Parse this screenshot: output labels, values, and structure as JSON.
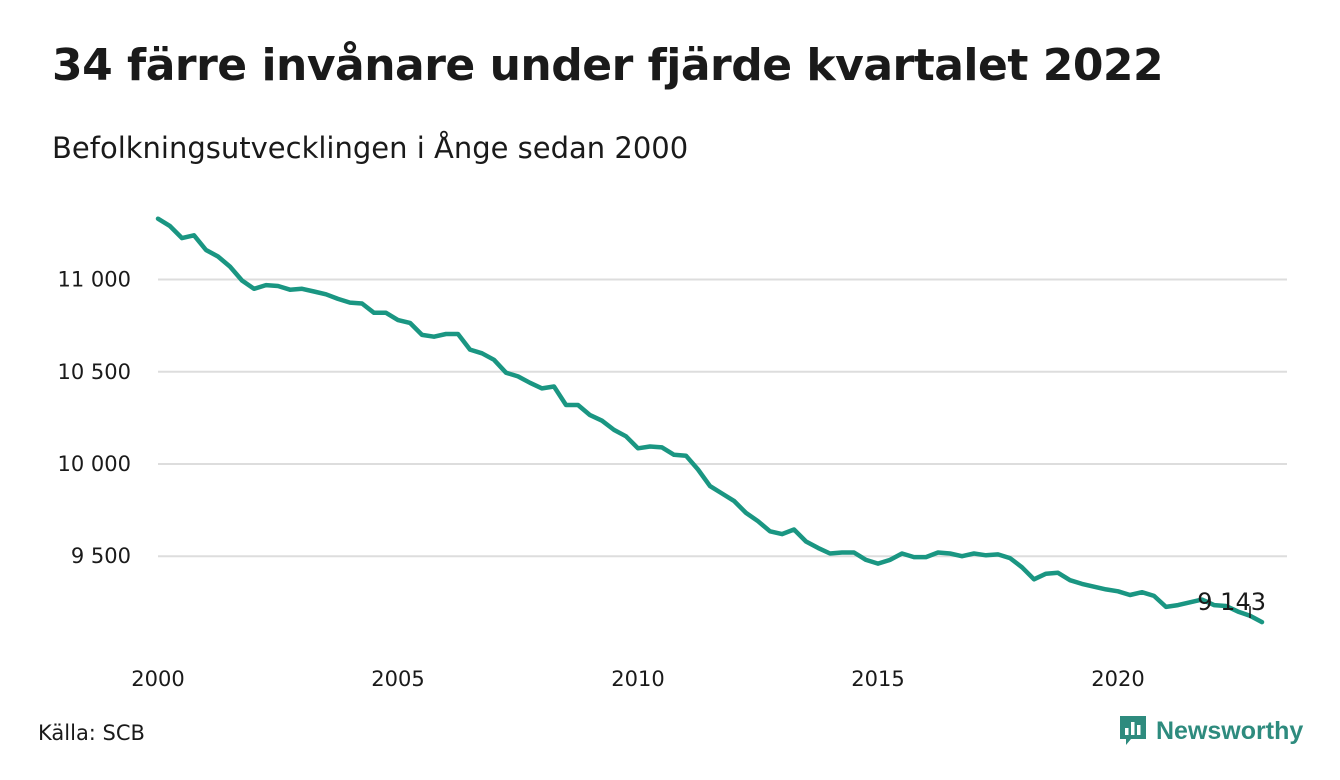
{
  "header": {
    "title": "34 färre invånare under fjärde kvartalet 2022",
    "subtitle": "Befolkningsutvecklingen i Ånge sedan 2000"
  },
  "footer": {
    "source": "Källa: SCB",
    "brand": "Newsworthy",
    "brand_icon": "newsworthy-logo-icon"
  },
  "colors": {
    "line": "#1a9682",
    "grid": "#dddddd",
    "brand": "#2e8b7e"
  },
  "chart_data": {
    "type": "line",
    "title": "34 färre invånare under fjärde kvartalet 2022",
    "subtitle": "Befolkningsutvecklingen i Ånge sedan 2000",
    "xlabel": "",
    "ylabel": "",
    "x_ticks": [
      2000,
      2005,
      2010,
      2015,
      2020
    ],
    "y_ticks": [
      {
        "value": 9500,
        "label": "9 500"
      },
      {
        "value": 10000,
        "label": "10 000"
      },
      {
        "value": 10500,
        "label": "10 500"
      },
      {
        "value": 11000,
        "label": "11 000"
      }
    ],
    "xlim": [
      2000,
      2022.75
    ],
    "ylim": [
      9100,
      11350
    ],
    "grid": true,
    "legend": "none",
    "end_label": {
      "x": 2022.75,
      "value": 9143,
      "text": "9 143"
    },
    "x_start_year": 2000,
    "x_step_years": 0.25,
    "values": [
      11330,
      11290,
      11225,
      11240,
      11160,
      11125,
      11070,
      10995,
      10950,
      10970,
      10965,
      10945,
      10950,
      10935,
      10920,
      10895,
      10875,
      10870,
      10820,
      10820,
      10780,
      10765,
      10700,
      10690,
      10705,
      10705,
      10620,
      10600,
      10565,
      10495,
      10475,
      10440,
      10410,
      10420,
      10320,
      10320,
      10265,
      10235,
      10185,
      10150,
      10085,
      10095,
      10090,
      10050,
      10045,
      9970,
      9880,
      9840,
      9800,
      9735,
      9690,
      9635,
      9620,
      9645,
      9580,
      9545,
      9515,
      9520,
      9520,
      9480,
      9460,
      9480,
      9515,
      9495,
      9495,
      9520,
      9515,
      9500,
      9515,
      9505,
      9510,
      9490,
      9440,
      9375,
      9405,
      9410,
      9370,
      9350,
      9335,
      9320,
      9310,
      9290,
      9305,
      9285,
      9225,
      9235,
      9250,
      9265,
      9235,
      9230,
      9200,
      9177,
      9143
    ]
  }
}
